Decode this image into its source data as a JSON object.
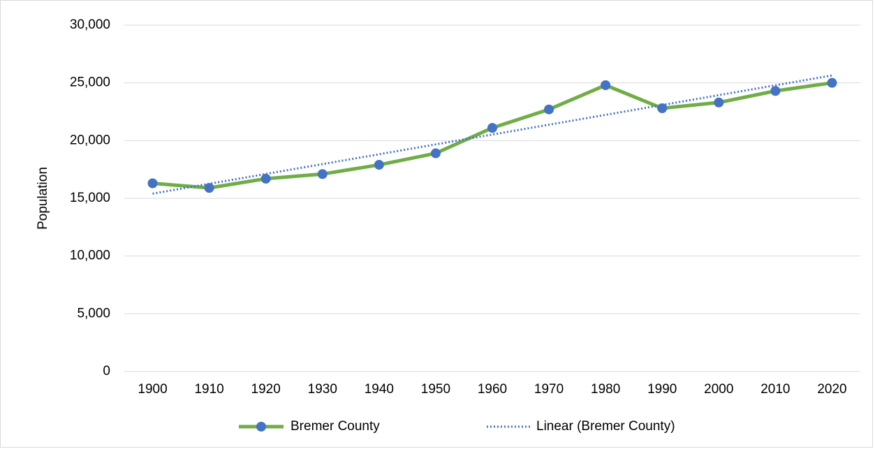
{
  "chart_data": {
    "type": "line",
    "y_label": "Population",
    "categories": [
      "1900",
      "1910",
      "1920",
      "1930",
      "1940",
      "1950",
      "1960",
      "1970",
      "1980",
      "1990",
      "2000",
      "2010",
      "2020"
    ],
    "series": [
      {
        "name": "Bremer County",
        "color": "#70ad47",
        "marker_color": "#4472c4",
        "values": [
          16300,
          15900,
          16700,
          17100,
          17900,
          18900,
          21100,
          22700,
          24800,
          22800,
          23300,
          24300,
          25000
        ]
      }
    ],
    "trendline": {
      "name": "Linear (Bremer County)",
      "color": "#4472c4"
    },
    "ylim": [
      0,
      30000
    ],
    "yticks": [
      {
        "value": 0,
        "label": "0"
      },
      {
        "value": 5000,
        "label": "5,000"
      },
      {
        "value": 10000,
        "label": "10,000"
      },
      {
        "value": 15000,
        "label": "15,000"
      },
      {
        "value": 20000,
        "label": "20,000"
      },
      {
        "value": 25000,
        "label": "25,000"
      },
      {
        "value": 30000,
        "label": "30,000"
      }
    ],
    "grid": true,
    "legend": "bottom"
  }
}
